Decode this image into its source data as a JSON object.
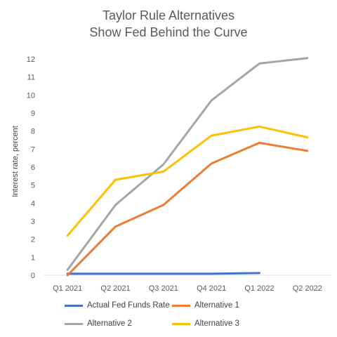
{
  "chart_data": {
    "type": "line",
    "title_line1": "Taylor Rule Alternatives",
    "title_line2": "Show Fed Behind the Curve",
    "ylabel": "Interest rate, percent",
    "xlabel": "",
    "categories": [
      "Q1 2021",
      "Q2 2021",
      "Q3 2021",
      "Q4 2021",
      "Q1 2022",
      "Q2 2022"
    ],
    "ylim": [
      0,
      12
    ],
    "yticks": [
      "0",
      "1",
      "2",
      "3",
      "4",
      "5",
      "6",
      "7",
      "8",
      "9",
      "10",
      "11",
      "12"
    ],
    "grid": false,
    "legend_position": "bottom",
    "series": [
      {
        "name": "Actual Fed Funds Rate",
        "color": "#4472C4",
        "values": [
          0.08,
          0.08,
          0.08,
          0.08,
          0.12,
          null
        ]
      },
      {
        "name": "Alternative 1",
        "color": "#ED7D31",
        "values": [
          0.0,
          2.7,
          3.9,
          6.2,
          7.35,
          6.9
        ]
      },
      {
        "name": "Alternative 2",
        "color": "#A5A5A5",
        "values": [
          0.3,
          3.9,
          6.15,
          9.7,
          11.75,
          12.05
        ]
      },
      {
        "name": "Alternative 3",
        "color": "#FFC000",
        "values": [
          2.2,
          5.3,
          5.75,
          7.75,
          8.25,
          7.65
        ]
      }
    ]
  }
}
